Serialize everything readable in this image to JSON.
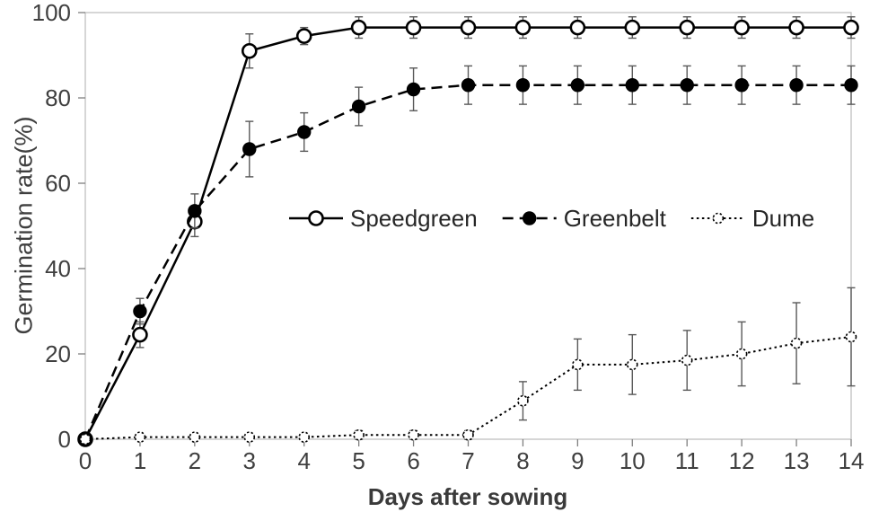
{
  "chart_data": {
    "type": "line",
    "title": "",
    "xlabel": "Days after sowing",
    "ylabel": "Germination rate(%)",
    "x": [
      0,
      1,
      2,
      3,
      4,
      5,
      6,
      7,
      8,
      9,
      10,
      11,
      12,
      13,
      14
    ],
    "xlim": [
      0,
      14
    ],
    "ylim": [
      0,
      100
    ],
    "yticks": [
      0,
      20,
      40,
      60,
      80,
      100
    ],
    "grid": false,
    "legend_position": "inside-middle",
    "series": [
      {
        "name": "Speedgreen",
        "line": "solid",
        "marker": "open-circle",
        "values": [
          0,
          24.5,
          51,
          91,
          94.5,
          96.5,
          96.5,
          96.5,
          96.5,
          96.5,
          96.5,
          96.5,
          96.5,
          96.5,
          96.5
        ],
        "errors": [
          0,
          3,
          3.5,
          4,
          2,
          2.5,
          2.5,
          2.5,
          2.5,
          2.5,
          2.5,
          2.5,
          2.5,
          2.5,
          2.5
        ]
      },
      {
        "name": "Greenbelt",
        "line": "dashed",
        "marker": "filled-circle",
        "values": [
          0,
          30,
          53.5,
          68,
          72,
          78,
          82,
          83,
          83,
          83,
          83,
          83,
          83,
          83,
          83
        ],
        "errors": [
          0,
          3,
          4,
          6.5,
          4.5,
          4.5,
          5,
          4.5,
          4.5,
          4.5,
          4.5,
          4.5,
          4.5,
          4.5,
          4.5
        ]
      },
      {
        "name": "Dume",
        "line": "dotted",
        "marker": "dotted-circle",
        "values": [
          0,
          0.5,
          0.5,
          0.5,
          0.5,
          1,
          1,
          1,
          9,
          17.5,
          17.5,
          18.5,
          20,
          22.5,
          24
        ],
        "errors": [
          0,
          0.5,
          0.5,
          0.5,
          0.5,
          1,
          1,
          1,
          4.5,
          6,
          7,
          7,
          7.5,
          9.5,
          11.5
        ]
      }
    ]
  },
  "colors": {
    "line": "#000000",
    "text": "#3f3f3f",
    "tick": "#7f7f7f",
    "border": "#bfbfbf",
    "error": "#595959",
    "background": "#ffffff"
  }
}
